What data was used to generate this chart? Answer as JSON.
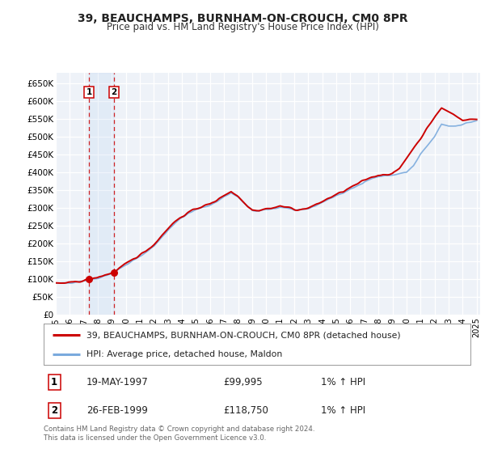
{
  "title": "39, BEAUCHAMPS, BURNHAM-ON-CROUCH, CM0 8PR",
  "subtitle": "Price paid vs. HM Land Registry's House Price Index (HPI)",
  "legend_line1": "39, BEAUCHAMPS, BURNHAM-ON-CROUCH, CM0 8PR (detached house)",
  "legend_line2": "HPI: Average price, detached house, Maldon",
  "footnote": "Contains HM Land Registry data © Crown copyright and database right 2024.\nThis data is licensed under the Open Government Licence v3.0.",
  "transaction1_date": "19-MAY-1997",
  "transaction1_price": 99995,
  "transaction1_label": "1% ↑ HPI",
  "transaction2_date": "26-FEB-1999",
  "transaction2_price": 118750,
  "transaction2_label": "1% ↑ HPI",
  "xlim_start": 1995.0,
  "xlim_end": 2025.25,
  "ylim_bottom": 0,
  "ylim_top": 680000,
  "yticks": [
    0,
    50000,
    100000,
    150000,
    200000,
    250000,
    300000,
    350000,
    400000,
    450000,
    500000,
    550000,
    600000,
    650000
  ],
  "ytick_labels": [
    "£0",
    "£50K",
    "£100K",
    "£150K",
    "£200K",
    "£250K",
    "£300K",
    "£350K",
    "£400K",
    "£450K",
    "£500K",
    "£550K",
    "£600K",
    "£650K"
  ],
  "price_color": "#cc0000",
  "hpi_color": "#7aaadd",
  "bg_color": "#eef2f8",
  "grid_color": "#ffffff",
  "transaction1_x": 1997.38,
  "transaction2_x": 1999.15,
  "hpi_anchors_x": [
    1995.0,
    1995.5,
    1996.0,
    1996.5,
    1997.0,
    1997.5,
    1998.0,
    1998.5,
    1999.0,
    1999.5,
    2000.0,
    2000.5,
    2001.0,
    2001.5,
    2002.0,
    2002.5,
    2003.0,
    2003.5,
    2004.0,
    2004.5,
    2005.0,
    2005.5,
    2006.0,
    2006.5,
    2007.0,
    2007.5,
    2008.0,
    2008.5,
    2009.0,
    2009.5,
    2010.0,
    2010.5,
    2011.0,
    2011.5,
    2012.0,
    2012.5,
    2013.0,
    2013.5,
    2014.0,
    2014.5,
    2015.0,
    2015.5,
    2016.0,
    2016.5,
    2017.0,
    2017.5,
    2018.0,
    2018.5,
    2019.0,
    2019.5,
    2020.0,
    2020.5,
    2021.0,
    2021.5,
    2022.0,
    2022.5,
    2023.0,
    2023.5,
    2024.0,
    2024.5,
    2025.0
  ],
  "hpi_anchors_y": [
    88000,
    89000,
    90000,
    93000,
    96000,
    99000,
    103000,
    110000,
    117000,
    128000,
    140000,
    152000,
    163000,
    178000,
    193000,
    215000,
    238000,
    258000,
    273000,
    285000,
    295000,
    302000,
    308000,
    318000,
    332000,
    342000,
    330000,
    310000,
    293000,
    291000,
    295000,
    298000,
    302000,
    300000,
    294000,
    293000,
    298000,
    306000,
    316000,
    325000,
    335000,
    342000,
    352000,
    362000,
    374000,
    382000,
    388000,
    390000,
    392000,
    396000,
    400000,
    418000,
    450000,
    475000,
    500000,
    535000,
    530000,
    530000,
    535000,
    540000,
    545000
  ],
  "prop_anchors_x": [
    1995.0,
    1995.5,
    1996.0,
    1996.5,
    1997.0,
    1997.38,
    1997.5,
    1998.0,
    1998.5,
    1999.0,
    1999.15,
    1999.5,
    2000.0,
    2000.5,
    2001.0,
    2001.5,
    2002.0,
    2002.5,
    2003.0,
    2003.5,
    2004.0,
    2004.5,
    2005.0,
    2005.5,
    2006.0,
    2006.5,
    2007.0,
    2007.5,
    2008.0,
    2008.5,
    2009.0,
    2009.5,
    2010.0,
    2010.5,
    2011.0,
    2011.5,
    2012.0,
    2012.5,
    2013.0,
    2013.5,
    2014.0,
    2014.5,
    2015.0,
    2015.5,
    2016.0,
    2016.5,
    2017.0,
    2017.5,
    2018.0,
    2018.5,
    2019.0,
    2019.5,
    2020.0,
    2020.5,
    2021.0,
    2021.5,
    2022.0,
    2022.5,
    2023.0,
    2023.5,
    2024.0,
    2024.5,
    2025.0
  ],
  "prop_anchors_y": [
    88000,
    89000,
    90000,
    93000,
    96000,
    99995,
    100000,
    105000,
    112000,
    117000,
    118750,
    130000,
    143000,
    156000,
    168000,
    182000,
    197000,
    220000,
    243000,
    262000,
    276000,
    288000,
    298000,
    305000,
    311000,
    322000,
    336000,
    346000,
    332000,
    312000,
    295000,
    293000,
    298000,
    300000,
    305000,
    302000,
    296000,
    295000,
    300000,
    308000,
    318000,
    328000,
    338000,
    346000,
    357000,
    367000,
    378000,
    386000,
    392000,
    394000,
    396000,
    410000,
    440000,
    468000,
    495000,
    525000,
    555000,
    580000,
    570000,
    560000,
    545000,
    548000,
    550000
  ]
}
